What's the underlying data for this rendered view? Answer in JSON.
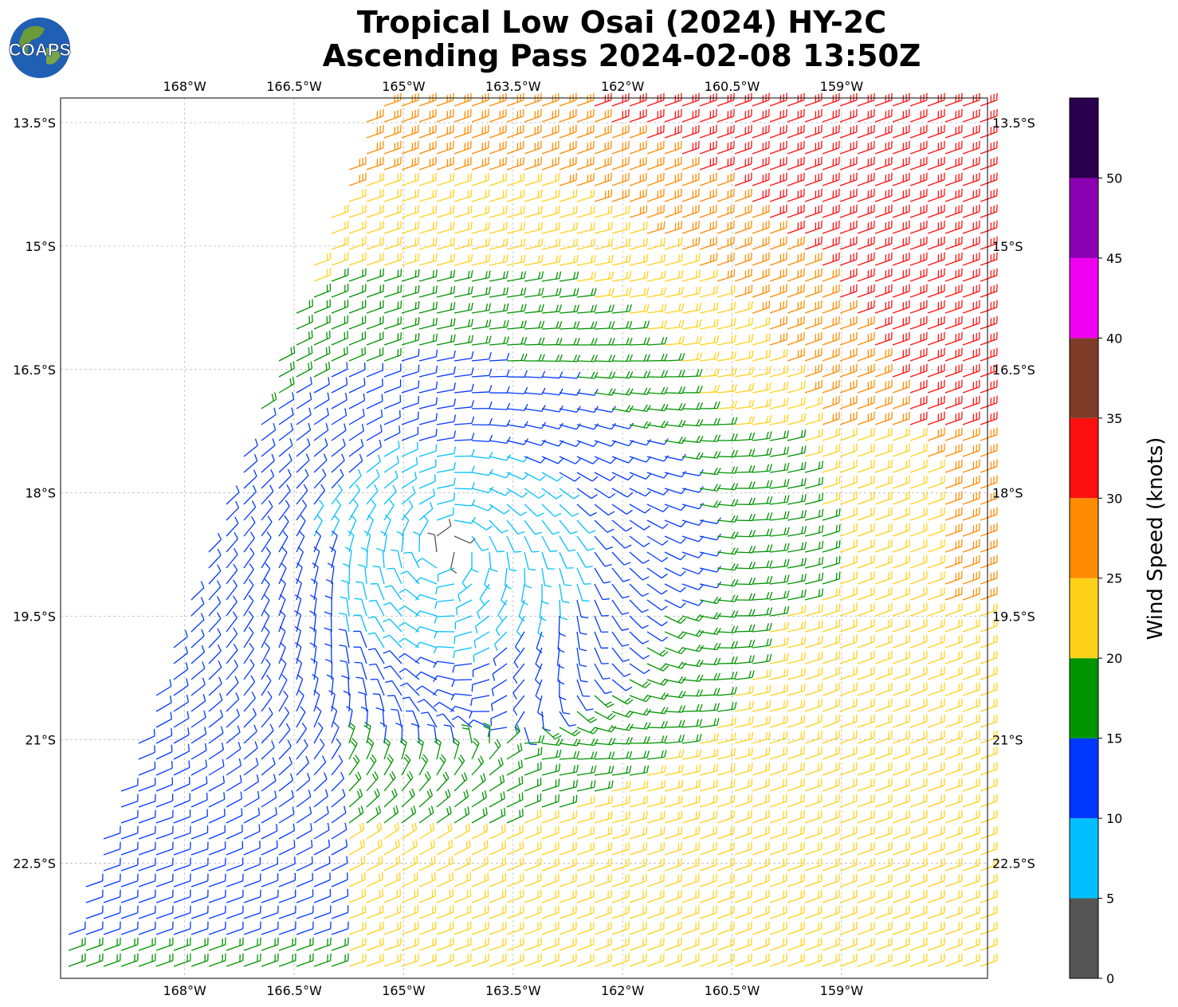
{
  "header": {
    "title_line1": "Tropical Low Osai (2024) HY-2C",
    "title_line2": "Ascending Pass 2024-02-08 13:50Z",
    "logo_text": "COAPS"
  },
  "chart_data": {
    "type": "wind-barb map",
    "title": "Tropical Low Osai (2024) HY-2C Ascending Pass 2024-02-08 13:50Z",
    "lon_range": [
      -169.7,
      -157.0
    ],
    "lat_range": [
      -13.2,
      -23.9
    ],
    "x_ticks": [
      "168°W",
      "166.5°W",
      "165°W",
      "163.5°W",
      "162°W",
      "160.5°W",
      "159°W"
    ],
    "x_tick_values": [
      -168,
      -166.5,
      -165,
      -163.5,
      -162,
      -160.5,
      -159
    ],
    "y_ticks": [
      "13.5°S",
      "15°S",
      "16.5°S",
      "18°S",
      "19.5°S",
      "21°S",
      "22.5°S"
    ],
    "y_tick_values": [
      -13.5,
      -15,
      -16.5,
      -18,
      -19.5,
      -21,
      -22.5
    ],
    "grid": true,
    "circulation_center": {
      "lon": -164.4,
      "lat": -18.7
    },
    "colorbar": {
      "label": "Wind Speed (knots)",
      "bounds": [
        0,
        5,
        10,
        15,
        20,
        25,
        30,
        35,
        40,
        45,
        50,
        55
      ],
      "tick_labels": [
        "0",
        "5",
        "10",
        "15",
        "20",
        "25",
        "30",
        "35",
        "40",
        "45",
        "50"
      ],
      "colors": [
        "#555555",
        "#00bfff",
        "#0038ff",
        "#009400",
        "#ffd21a",
        "#ff8c00",
        "#ff1010",
        "#7f3c28",
        "#f000f0",
        "#8c00b4",
        "#2a004f"
      ]
    }
  }
}
